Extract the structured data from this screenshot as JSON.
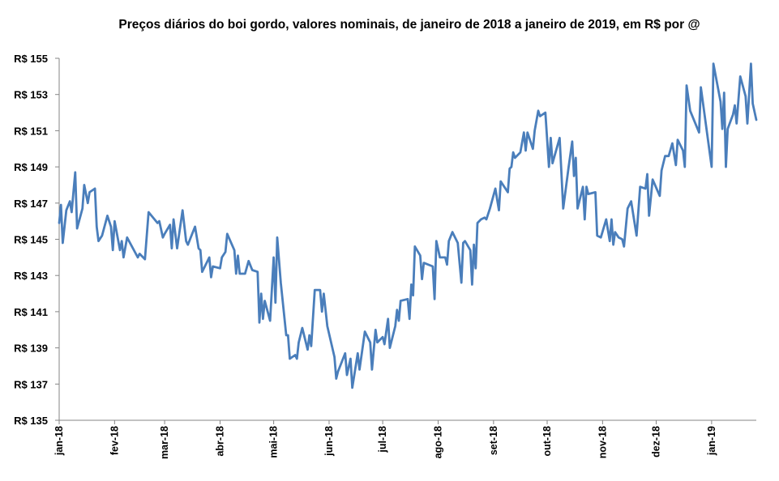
{
  "chart_data": {
    "type": "line",
    "title": "Preços diários do boi gordo, valores nominais, de janeiro de 2018 a janeiro de 2019, em R$ por @",
    "xlabel": "",
    "ylabel": "",
    "x_unit": "days since 1 Jan 2018",
    "ylim": [
      135,
      155
    ],
    "xlim": [
      0,
      390
    ],
    "grid": false,
    "line_color": "#4a7ebb",
    "y_ticks": [
      135,
      137,
      139,
      141,
      143,
      145,
      147,
      149,
      151,
      153,
      155
    ],
    "y_tick_labels": [
      "R$ 135",
      "R$ 137",
      "R$ 139",
      "R$ 141",
      "R$ 143",
      "R$ 145",
      "R$ 147",
      "R$ 149",
      "R$ 151",
      "R$ 153",
      "R$ 155"
    ],
    "x_ticks": [
      0,
      31,
      59,
      90,
      120,
      151,
      181,
      212,
      243,
      273,
      304,
      334,
      365
    ],
    "x_tick_labels": [
      "jan-18",
      "fev-18",
      "mar-18",
      "abr-18",
      "mai-18",
      "jun-18",
      "jul-18",
      "ago-18",
      "set-18",
      "out-18",
      "nov-18",
      "dez-18",
      "jan-19"
    ],
    "series": [
      {
        "name": "Boi gordo",
        "x": [
          0,
          1,
          2,
          4,
          6,
          7,
          9,
          10,
          13,
          14,
          16,
          17,
          20,
          21,
          22,
          24,
          27,
          29,
          30,
          31,
          34,
          35,
          36,
          38,
          44,
          45,
          48,
          50,
          55,
          56,
          58,
          59,
          62,
          63,
          64,
          66,
          69,
          71,
          72,
          74,
          76,
          78,
          79,
          80,
          84,
          85,
          86,
          90,
          91,
          93,
          94,
          98,
          99,
          100,
          101,
          104,
          106,
          108,
          111,
          112,
          113,
          114,
          115,
          118,
          120,
          121,
          122,
          124,
          127,
          128,
          129,
          132,
          133,
          134,
          136,
          139,
          140,
          141,
          143,
          146,
          147,
          148,
          150,
          154,
          155,
          156,
          160,
          161,
          163,
          164,
          167,
          168,
          171,
          174,
          175,
          177,
          178,
          181,
          182,
          184,
          185,
          188,
          189,
          190,
          191,
          195,
          196,
          197,
          198,
          199,
          202,
          203,
          204,
          209,
          210,
          211,
          213,
          216,
          217,
          218,
          220,
          223,
          225,
          226,
          227,
          230,
          231,
          232,
          233,
          234,
          236,
          238,
          239,
          241,
          244,
          246,
          247,
          251,
          252,
          253,
          254,
          255,
          258,
          260,
          261,
          262,
          265,
          266,
          268,
          269,
          272,
          274,
          275,
          276,
          280,
          282,
          285,
          287,
          288,
          289,
          290,
          293,
          294,
          295,
          296,
          300,
          301,
          303,
          306,
          308,
          309,
          310,
          311,
          313,
          315,
          316,
          318,
          320,
          323,
          325,
          328,
          329,
          330,
          332,
          336,
          337,
          339,
          341,
          343,
          345,
          346,
          349,
          350,
          351,
          353,
          358,
          359,
          365,
          366,
          370,
          371,
          372,
          373,
          374,
          377,
          378,
          379,
          381,
          384,
          385,
          387,
          388,
          390
        ],
        "y": [
          145.9,
          146.9,
          144.8,
          146.6,
          147.1,
          146.5,
          148.7,
          145.6,
          146.7,
          148.0,
          147.0,
          147.6,
          147.8,
          145.7,
          144.9,
          145.2,
          146.3,
          145.7,
          144.4,
          146.0,
          144.4,
          144.9,
          144.0,
          145.1,
          144.0,
          144.2,
          143.9,
          146.5,
          145.9,
          146.0,
          145.1,
          145.3,
          145.8,
          144.5,
          146.1,
          144.5,
          146.6,
          144.9,
          144.7,
          145.2,
          145.7,
          144.5,
          144.4,
          143.2,
          144.0,
          142.9,
          143.5,
          143.4,
          144.0,
          144.3,
          145.3,
          144.4,
          143.1,
          144.1,
          143.1,
          143.1,
          143.8,
          143.3,
          143.2,
          140.4,
          142.0,
          140.6,
          141.6,
          140.5,
          144.0,
          141.5,
          145.1,
          142.6,
          139.7,
          139.7,
          138.4,
          138.6,
          138.4,
          139.3,
          140.1,
          138.9,
          139.7,
          139.1,
          142.2,
          142.2,
          141.0,
          142.0,
          140.2,
          138.5,
          137.3,
          137.7,
          138.7,
          137.5,
          138.4,
          136.8,
          138.7,
          137.8,
          139.9,
          139.3,
          137.8,
          140.0,
          139.3,
          139.6,
          139.2,
          140.6,
          139.0,
          140.2,
          141.1,
          140.5,
          141.6,
          141.7,
          140.6,
          142.5,
          141.9,
          144.6,
          144.1,
          142.8,
          143.7,
          143.5,
          141.7,
          144.9,
          144.0,
          144.0,
          143.6,
          144.9,
          145.4,
          144.8,
          142.6,
          144.8,
          144.9,
          144.4,
          142.5,
          144.7,
          143.4,
          145.9,
          146.1,
          146.2,
          146.1,
          146.7,
          147.8,
          146.6,
          148.2,
          147.6,
          148.9,
          149.0,
          149.8,
          149.5,
          149.8,
          150.9,
          149.9,
          150.9,
          150.0,
          151.0,
          152.1,
          151.8,
          152.0,
          149.0,
          150.6,
          149.2,
          150.6,
          146.7,
          149.0,
          150.4,
          148.5,
          149.5,
          146.7,
          147.9,
          146.1,
          147.9,
          147.5,
          147.6,
          145.2,
          145.1,
          146.1,
          144.9,
          146.1,
          144.7,
          145.4,
          145.1,
          145.0,
          144.6,
          146.7,
          147.1,
          145.2,
          147.9,
          147.8,
          148.6,
          146.3,
          148.3,
          147.4,
          148.8,
          149.6,
          149.6,
          150.3,
          149.1,
          150.5,
          149.9,
          149.0,
          153.5,
          152.1,
          150.9,
          153.4,
          149.0,
          154.7,
          152.6,
          151.1,
          153.1,
          149.0,
          151.1,
          151.9,
          152.4,
          151.4,
          154.0,
          152.9,
          151.4,
          154.7,
          152.5,
          151.6
        ]
      }
    ]
  }
}
